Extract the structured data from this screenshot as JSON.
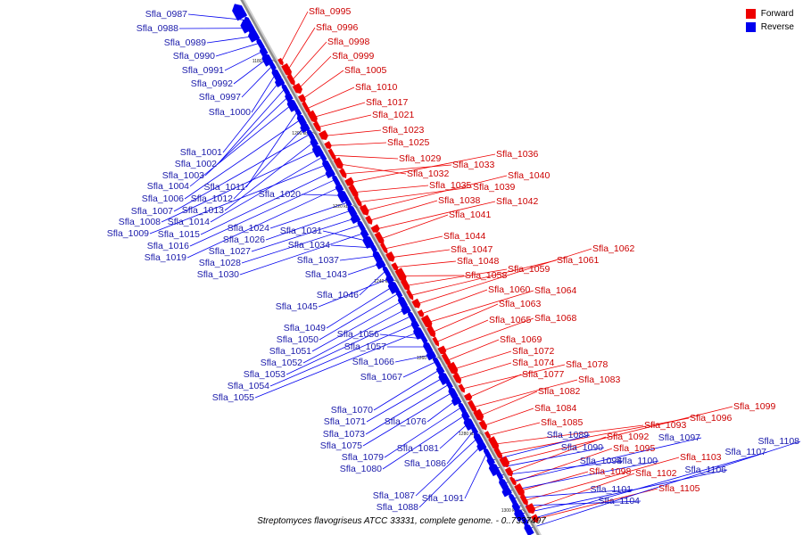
{
  "caption": "Streptomyces flavogriseus ATCC 33331, complete genome. - 0..7337497",
  "legend": [
    {
      "label": "Forward",
      "color": "#ee0000"
    },
    {
      "label": "Reverse",
      "color": "#0000ee"
    }
  ],
  "colors": {
    "forward": "#ee0000",
    "reverse": "#0000ee",
    "backbone": "#8c8c8c"
  },
  "ticks": [
    "1180 kbp",
    "1200 kbp",
    "1220 kbp",
    "1240 kbp",
    "1260 kbp",
    "1280 kbp",
    "1300 kbp"
  ],
  "forward_genes": [
    "Sfla_0995",
    "Sfla_0996",
    "Sfla_0998",
    "Sfla_0999",
    "Sfla_1005",
    "Sfla_1010",
    "Sfla_1017",
    "Sfla_1021",
    "Sfla_1023",
    "Sfla_1025",
    "Sfla_1029",
    "Sfla_1032",
    "Sfla_1033",
    "Sfla_1036",
    "Sfla_1035",
    "Sfla_1039",
    "Sfla_1040",
    "Sfla_1038",
    "Sfla_1042",
    "Sfla_1041",
    "Sfla_1044",
    "Sfla_1047",
    "Sfla_1048",
    "Sfla_1058",
    "Sfla_1059",
    "Sfla_1061",
    "Sfla_1062",
    "Sfla_1060",
    "Sfla_1064",
    "Sfla_1063",
    "Sfla_1065",
    "Sfla_1068",
    "Sfla_1069",
    "Sfla_1072",
    "Sfla_1074",
    "Sfla_1078",
    "Sfla_1077",
    "Sfla_1083",
    "Sfla_1082",
    "Sfla_1084",
    "Sfla_1085",
    "Sfla_1093",
    "Sfla_1096",
    "Sfla_1099",
    "Sfla_1092",
    "Sfla_1095",
    "Sfla_1098",
    "Sfla_1103",
    "Sfla_1102",
    "Sfla_1105"
  ],
  "reverse_genes": [
    "Sfla_0987",
    "Sfla_0988",
    "Sfla_0989",
    "Sfla_0990",
    "Sfla_0991",
    "Sfla_0992",
    "Sfla_0997",
    "Sfla_1000",
    "Sfla_1001",
    "Sfla_1002",
    "Sfla_1003",
    "Sfla_1004",
    "Sfla_1011",
    "Sfla_1006",
    "Sfla_1012",
    "Sfla_1007",
    "Sfla_1013",
    "Sfla_1008",
    "Sfla_1014",
    "Sfla_1009",
    "Sfla_1015",
    "Sfla_1016",
    "Sfla_1019",
    "Sfla_1020",
    "Sfla_1024",
    "Sfla_1026",
    "Sfla_1027",
    "Sfla_1028",
    "Sfla_1030",
    "Sfla_1031",
    "Sfla_1034",
    "Sfla_1037",
    "Sfla_1043",
    "Sfla_1046",
    "Sfla_1045",
    "Sfla_1049",
    "Sfla_1050",
    "Sfla_1051",
    "Sfla_1052",
    "Sfla_1053",
    "Sfla_1054",
    "Sfla_1055",
    "Sfla_1056",
    "Sfla_1057",
    "Sfla_1066",
    "Sfla_1067",
    "Sfla_1070",
    "Sfla_1071",
    "Sfla_1073",
    "Sfla_1075",
    "Sfla_1076",
    "Sfla_1079",
    "Sfla_1080",
    "Sfla_1081",
    "Sfla_1086",
    "Sfla_1087",
    "Sfla_1088",
    "Sfla_1091",
    "Sfla_1089",
    "Sfla_1090",
    "Sfla_1094",
    "Sfla_1097",
    "Sfla_1100",
    "Sfla_1101",
    "Sfla_1104",
    "Sfla_1106",
    "Sfla_1107",
    "Sfla_1108"
  ]
}
